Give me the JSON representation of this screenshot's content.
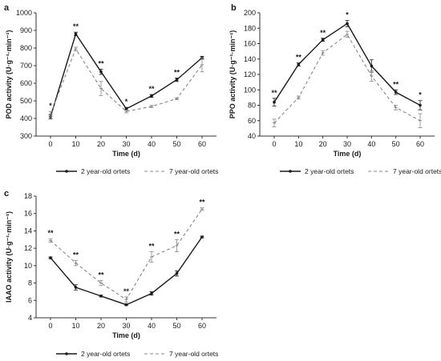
{
  "panels": [
    {
      "label": "a",
      "legend": [
        "2 year-old ortets",
        "7 year-old ortets"
      ]
    },
    {
      "label": "b",
      "legend": [
        "2 year-old ortets",
        "7 year-old ortets"
      ]
    },
    {
      "label": "c",
      "legend": [
        "2 year-old ortets",
        "7 year-old ortets"
      ]
    }
  ],
  "chart_data": [
    {
      "type": "line",
      "panel_label": "a",
      "xlabel": "Time (d)",
      "ylabel": "POD activity (U·g⁻¹·min⁻¹)",
      "x": [
        0,
        10,
        20,
        30,
        40,
        50,
        60
      ],
      "xlim": [
        0,
        60
      ],
      "ylim": [
        300,
        1000
      ],
      "yticks": [
        300,
        400,
        500,
        600,
        700,
        800,
        900,
        1000
      ],
      "grid": false,
      "legend_position": "bottom",
      "series": [
        {
          "name": "2 year-old ortets",
          "style": "solid",
          "color": "#1a1a1a",
          "values": [
            410,
            880,
            665,
            455,
            528,
            620,
            745
          ],
          "errors": [
            12,
            10,
            15,
            8,
            8,
            10,
            8
          ]
        },
        {
          "name": "7 year-old ortets",
          "style": "dashed",
          "color": "#888888",
          "values": [
            425,
            795,
            570,
            440,
            468,
            512,
            705
          ],
          "errors": [
            15,
            10,
            40,
            8,
            6,
            6,
            40
          ]
        }
      ],
      "significance": [
        "*",
        "**",
        "**",
        "*",
        "**",
        "**",
        ""
      ]
    },
    {
      "type": "line",
      "panel_label": "b",
      "xlabel": "Time (d)",
      "ylabel": "PPO activity (U·g⁻¹·min⁻¹)",
      "x": [
        0,
        10,
        20,
        30,
        40,
        50,
        60
      ],
      "xlim": [
        0,
        60
      ],
      "ylim": [
        40,
        200
      ],
      "yticks": [
        40,
        60,
        80,
        100,
        120,
        140,
        160,
        180,
        200
      ],
      "grid": false,
      "legend_position": "bottom",
      "series": [
        {
          "name": "2 year-old ortets",
          "style": "solid",
          "color": "#1a1a1a",
          "values": [
            84,
            133,
            165,
            186,
            131,
            97,
            80
          ],
          "errors": [
            5,
            2,
            2,
            4,
            8,
            3,
            6
          ]
        },
        {
          "name": "7 year-old ortets",
          "style": "dashed",
          "color": "#888888",
          "values": [
            57,
            90,
            148,
            172,
            118,
            77,
            60
          ],
          "errors": [
            5,
            2,
            3,
            4,
            7,
            3,
            9
          ]
        }
      ],
      "significance": [
        "**",
        "**",
        "**",
        "*",
        "",
        "**",
        "*"
      ]
    },
    {
      "type": "line",
      "panel_label": "c",
      "xlabel": "Time (d)",
      "ylabel": "IAAO activity (U·g⁻¹·min⁻¹)",
      "x": [
        0,
        10,
        20,
        30,
        40,
        50,
        60
      ],
      "xlim": [
        0,
        60
      ],
      "ylim": [
        4,
        18
      ],
      "yticks": [
        4,
        6,
        8,
        10,
        12,
        14,
        16,
        18
      ],
      "grid": false,
      "legend_position": "bottom",
      "series": [
        {
          "name": "2 year-old ortets",
          "style": "solid",
          "color": "#1a1a1a",
          "values": [
            10.9,
            7.5,
            6.5,
            5.5,
            6.8,
            9.1,
            13.3
          ],
          "errors": [
            0.1,
            0.3,
            0.1,
            0.1,
            0.2,
            0.3,
            0.1
          ]
        },
        {
          "name": "7 year-old ortets",
          "style": "dashed",
          "color": "#888888",
          "values": [
            12.9,
            10.3,
            8.0,
            6.1,
            11.0,
            12.3,
            16.5
          ],
          "errors": [
            0.2,
            0.3,
            0.3,
            0.3,
            0.6,
            0.7,
            0.15
          ]
        }
      ],
      "significance": [
        "**",
        "**",
        "**",
        "**",
        "**",
        "**",
        "**"
      ]
    }
  ]
}
